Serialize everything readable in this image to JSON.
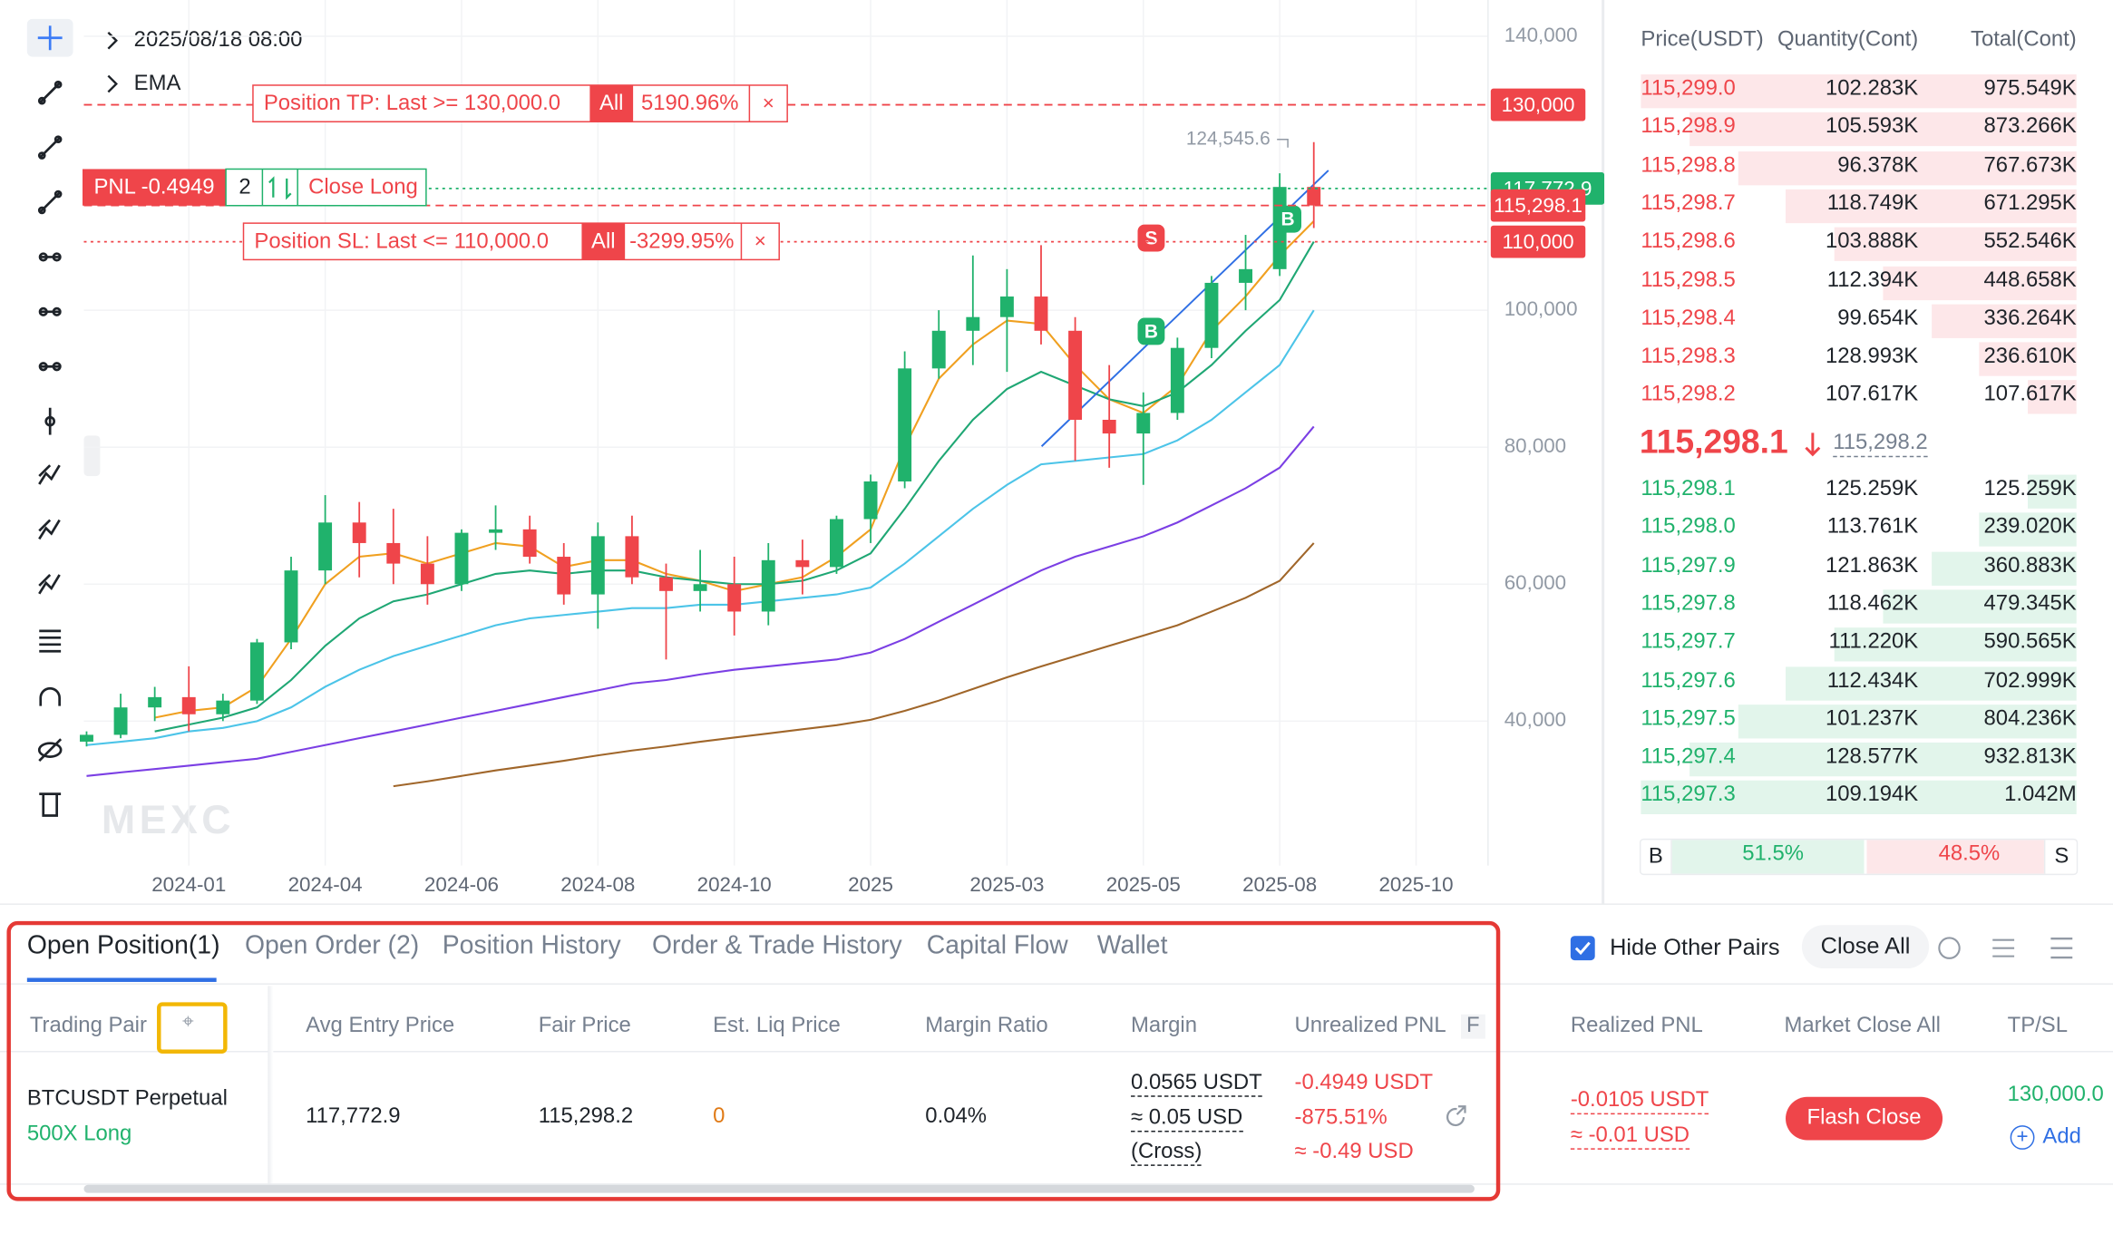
{
  "chart_data": {
    "type": "candlestick",
    "datetime": "2025/08/18 08:00",
    "indicator": "EMA",
    "watermark": "MEXC",
    "up_color": "#20b26c",
    "down_color": "#ef454a",
    "grid": true,
    "ylim": [
      18900,
      145300
    ],
    "yticks": [
      {
        "value": 40000,
        "label": "40,000"
      },
      {
        "value": 60000,
        "label": "60,000"
      },
      {
        "value": 80000,
        "label": "80,000"
      },
      {
        "value": 100000,
        "label": "100,000"
      },
      {
        "value": 140000,
        "label": "140,000"
      }
    ],
    "xticks": [
      {
        "value": 3,
        "label": "2024-01"
      },
      {
        "value": 7,
        "label": "2024-04"
      },
      {
        "value": 11,
        "label": "2024-06"
      },
      {
        "value": 15,
        "label": "2024-08"
      },
      {
        "value": 19,
        "label": "2024-10"
      },
      {
        "value": 23,
        "label": "2025"
      },
      {
        "value": 27,
        "label": "2025-03"
      },
      {
        "value": 31,
        "label": "2025-05"
      },
      {
        "value": 35,
        "label": "2025-08"
      },
      {
        "value": 39,
        "label": "2025-10"
      }
    ],
    "candles": [
      {
        "open": 37000,
        "high": 38500,
        "low": 36300,
        "close": 38000
      },
      {
        "open": 38000,
        "high": 44000,
        "low": 37500,
        "close": 42000
      },
      {
        "open": 42000,
        "high": 45000,
        "low": 40000,
        "close": 43500
      },
      {
        "open": 43500,
        "high": 48000,
        "low": 38500,
        "close": 41000
      },
      {
        "open": 41000,
        "high": 44000,
        "low": 40000,
        "close": 43000
      },
      {
        "open": 43000,
        "high": 52000,
        "low": 42500,
        "close": 51500
      },
      {
        "open": 51500,
        "high": 64000,
        "low": 50500,
        "close": 62000
      },
      {
        "open": 62000,
        "high": 73000,
        "low": 60000,
        "close": 69000
      },
      {
        "open": 69000,
        "high": 72000,
        "low": 61000,
        "close": 66000
      },
      {
        "open": 66000,
        "high": 71000,
        "low": 60000,
        "close": 63000
      },
      {
        "open": 63000,
        "high": 67000,
        "low": 57000,
        "close": 60000
      },
      {
        "open": 60000,
        "high": 68000,
        "low": 59000,
        "close": 67500
      },
      {
        "open": 67500,
        "high": 71500,
        "low": 65000,
        "close": 68000
      },
      {
        "open": 68000,
        "high": 70000,
        "low": 63000,
        "close": 64000
      },
      {
        "open": 64000,
        "high": 66000,
        "low": 57000,
        "close": 58500
      },
      {
        "open": 58500,
        "high": 69000,
        "low": 53500,
        "close": 67000
      },
      {
        "open": 67000,
        "high": 70000,
        "low": 60000,
        "close": 61000
      },
      {
        "open": 61000,
        "high": 63000,
        "low": 49000,
        "close": 59000
      },
      {
        "open": 59000,
        "high": 65000,
        "low": 56000,
        "close": 60000
      },
      {
        "open": 60000,
        "high": 64000,
        "low": 52500,
        "close": 56000
      },
      {
        "open": 56000,
        "high": 66000,
        "low": 54000,
        "close": 63500
      },
      {
        "open": 63500,
        "high": 66500,
        "low": 58500,
        "close": 62500
      },
      {
        "open": 62500,
        "high": 70000,
        "low": 61500,
        "close": 69500
      },
      {
        "open": 69500,
        "high": 76000,
        "low": 66000,
        "close": 75000
      },
      {
        "open": 75000,
        "high": 94000,
        "low": 74000,
        "close": 91500
      },
      {
        "open": 91500,
        "high": 100000,
        "low": 90000,
        "close": 97000
      },
      {
        "open": 97000,
        "high": 108000,
        "low": 92000,
        "close": 99000
      },
      {
        "open": 99000,
        "high": 106000,
        "low": 91000,
        "close": 102000
      },
      {
        "open": 102000,
        "high": 109500,
        "low": 95000,
        "close": 97000
      },
      {
        "open": 97000,
        "high": 99000,
        "low": 78000,
        "close": 84000
      },
      {
        "open": 84000,
        "high": 92000,
        "low": 77000,
        "close": 82000
      },
      {
        "open": 82000,
        "high": 88000,
        "low": 74500,
        "close": 85000
      },
      {
        "open": 85000,
        "high": 96000,
        "low": 84000,
        "close": 94500
      },
      {
        "open": 94500,
        "high": 105000,
        "low": 93000,
        "close": 104000
      },
      {
        "open": 104000,
        "high": 111000,
        "low": 100000,
        "close": 106000
      },
      {
        "open": 106000,
        "high": 120000,
        "low": 105000,
        "close": 118000
      },
      {
        "open": 118000,
        "high": 124545.6,
        "low": 112000,
        "close": 115298.1
      }
    ],
    "high_marker": {
      "value": 124545.6,
      "label": "124,545.6"
    },
    "ema": [
      {
        "color": "#f0a020",
        "values": [
          null,
          null,
          40500,
          41500,
          42000,
          45000,
          52000,
          60000,
          64000,
          64500,
          63000,
          64500,
          66000,
          65500,
          62500,
          63500,
          63500,
          61500,
          60500,
          59000,
          60000,
          61000,
          64000,
          68000,
          80000,
          90000,
          95000,
          98500,
          98000,
          92000,
          87000,
          85000,
          89000,
          97000,
          102000,
          108000,
          113000
        ]
      },
      {
        "color": "#1fa774",
        "values": [
          null,
          null,
          38500,
          39500,
          40500,
          42000,
          46000,
          51000,
          55000,
          57500,
          58500,
          60000,
          61500,
          62000,
          61500,
          62000,
          62000,
          61000,
          60500,
          60000,
          60000,
          60500,
          62000,
          64500,
          71000,
          78000,
          84000,
          88500,
          91000,
          89000,
          87000,
          86000,
          88000,
          92000,
          97000,
          101500,
          110000
        ]
      },
      {
        "color": "#4cc4e8",
        "values": [
          36500,
          37000,
          37500,
          38500,
          39000,
          40000,
          42000,
          45000,
          47500,
          49500,
          51000,
          52500,
          54000,
          55000,
          55500,
          56000,
          56500,
          56500,
          57000,
          57000,
          57500,
          58000,
          58500,
          59500,
          63000,
          67000,
          71000,
          74500,
          77500,
          78000,
          78500,
          79000,
          81000,
          84000,
          88000,
          92000,
          100000
        ]
      },
      {
        "color": "#7b3fe4",
        "values": [
          32000,
          32500,
          33000,
          33500,
          34000,
          34500,
          35500,
          36500,
          37500,
          38500,
          39500,
          40500,
          41500,
          42500,
          43500,
          44500,
          45500,
          46000,
          46800,
          47500,
          48000,
          48500,
          49000,
          50000,
          52000,
          54500,
          57000,
          59500,
          62000,
          64000,
          65500,
          67000,
          69000,
          71500,
          74000,
          77000,
          83000
        ]
      },
      {
        "color": "#a0662a",
        "values": [
          null,
          null,
          null,
          null,
          null,
          null,
          null,
          null,
          null,
          30500,
          31200,
          32000,
          32800,
          33500,
          34200,
          35000,
          35700,
          36300,
          37000,
          37600,
          38200,
          38800,
          39400,
          40200,
          41500,
          43000,
          44700,
          46400,
          48000,
          49500,
          51000,
          52500,
          54000,
          56000,
          58000,
          60500,
          66000
        ]
      }
    ],
    "price_lines": [
      {
        "value": 130000,
        "label": "130,000",
        "color": "#ef454a",
        "dash": "dashed"
      },
      {
        "value": 117772.9,
        "label": "117,772.9",
        "color": "#20b26c",
        "dash": "dotted"
      },
      {
        "value": 115298.1,
        "label": "115,298.1",
        "color": "#ef454a",
        "dash": "dashed"
      },
      {
        "value": 110000,
        "label": "110,000",
        "color": "#ef454a",
        "dash": "dotted"
      }
    ],
    "tp_order": {
      "text": "Position TP: Last >= 130,000.0",
      "scope": "All",
      "pnl": "5190.96%"
    },
    "sl_order": {
      "text": "Position SL: Last <= 110,000.0",
      "scope": "All",
      "pnl": "-3299.95%"
    },
    "position_tag": {
      "pnl": "PNL -0.4949",
      "qty": "2",
      "action": "Close Long"
    },
    "trade_markers": [
      "S",
      "B",
      "B"
    ]
  },
  "order_book": {
    "headers": [
      "Price(USDT)",
      "Quantity(Cont)",
      "Total(Cont)"
    ],
    "asks": [
      [
        "115,299.0",
        "102.283K",
        "975.549K"
      ],
      [
        "115,298.9",
        "105.593K",
        "873.266K"
      ],
      [
        "115,298.8",
        "96.378K",
        "767.673K"
      ],
      [
        "115,298.7",
        "118.749K",
        "671.295K"
      ],
      [
        "115,298.6",
        "103.888K",
        "552.546K"
      ],
      [
        "115,298.5",
        "112.394K",
        "448.658K"
      ],
      [
        "115,298.4",
        "99.654K",
        "336.264K"
      ],
      [
        "115,298.3",
        "128.993K",
        "236.610K"
      ],
      [
        "115,298.2",
        "107.617K",
        "107.617K"
      ]
    ],
    "last_price": "115,298.1",
    "mark_price": "115,298.2",
    "bids": [
      [
        "115,298.1",
        "125.259K",
        "125.259K"
      ],
      [
        "115,298.0",
        "113.761K",
        "239.020K"
      ],
      [
        "115,297.9",
        "121.863K",
        "360.883K"
      ],
      [
        "115,297.8",
        "118.462K",
        "479.345K"
      ],
      [
        "115,297.7",
        "111.220K",
        "590.565K"
      ],
      [
        "115,297.6",
        "112.434K",
        "702.999K"
      ],
      [
        "115,297.5",
        "101.237K",
        "804.236K"
      ],
      [
        "115,297.4",
        "128.577K",
        "932.813K"
      ],
      [
        "115,297.3",
        "109.194K",
        "1.042M"
      ]
    ],
    "buy_label": "B",
    "buy_ratio": "51.5%",
    "sell_ratio": "48.5%",
    "sell_label": "S"
  },
  "positions": {
    "tabs": [
      "Open Position(1)",
      "Open Order (2)",
      "Position History",
      "Order & Trade History",
      "Capital Flow",
      "Wallet"
    ],
    "hide_other_pairs": "Hide Other Pairs",
    "close_all": "Close All",
    "headers": [
      "Trading Pair",
      "Avg Entry Price",
      "Fair Price",
      "Est. Liq Price",
      "Margin Ratio",
      "Margin",
      "Unrealized PNL",
      "F",
      "Realized PNL",
      "Market Close All",
      "TP/SL"
    ],
    "row": {
      "pair": "BTCUSDT Perpetual",
      "leverage": "500X Long",
      "avg_entry": "117,772.9",
      "fair_price": "115,298.2",
      "liq_price": "0",
      "margin_ratio": "0.04%",
      "margin": [
        "0.0565 USDT",
        "≈ 0.05 USD",
        "(Cross)"
      ],
      "unrealized": [
        "-0.4949 USDT",
        "-875.51%",
        "≈ -0.49 USD"
      ],
      "realized": [
        "-0.0105 USDT",
        "≈ -0.01 USD"
      ],
      "flash_close": "Flash Close",
      "tp": "130,000.0",
      "add": "Add"
    }
  }
}
